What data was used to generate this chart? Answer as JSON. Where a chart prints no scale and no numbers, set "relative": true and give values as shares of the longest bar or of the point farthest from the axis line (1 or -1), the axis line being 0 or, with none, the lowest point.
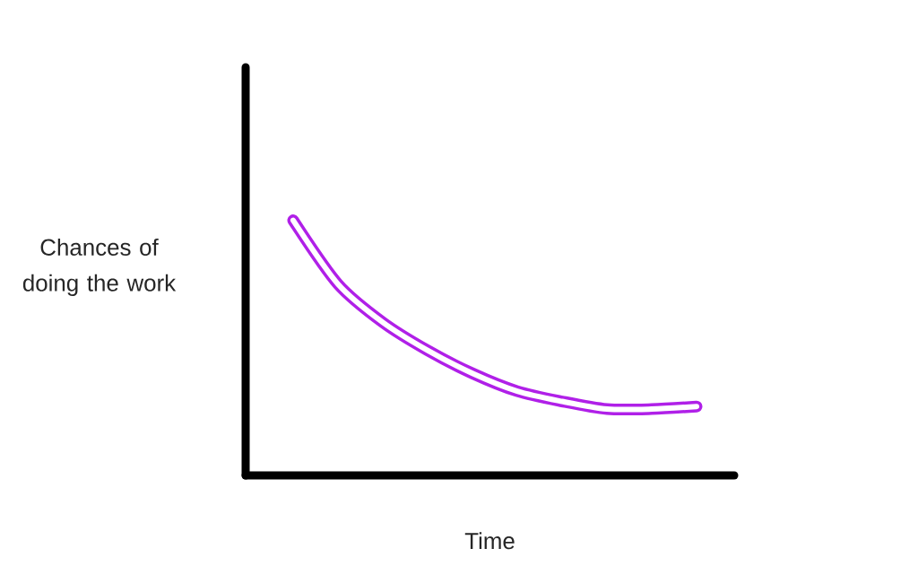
{
  "chart_data": {
    "type": "line",
    "relative": true,
    "xlabel": "Time",
    "ylabel": "Chances of doing the work",
    "categories": [
      null,
      null,
      null,
      null,
      null,
      null,
      null,
      null,
      null,
      null
    ],
    "values": [
      1.0,
      0.75,
      0.6,
      0.49,
      0.4,
      0.33,
      0.29,
      0.26,
      0.26,
      0.27
    ],
    "color": "#b020e8"
  }
}
